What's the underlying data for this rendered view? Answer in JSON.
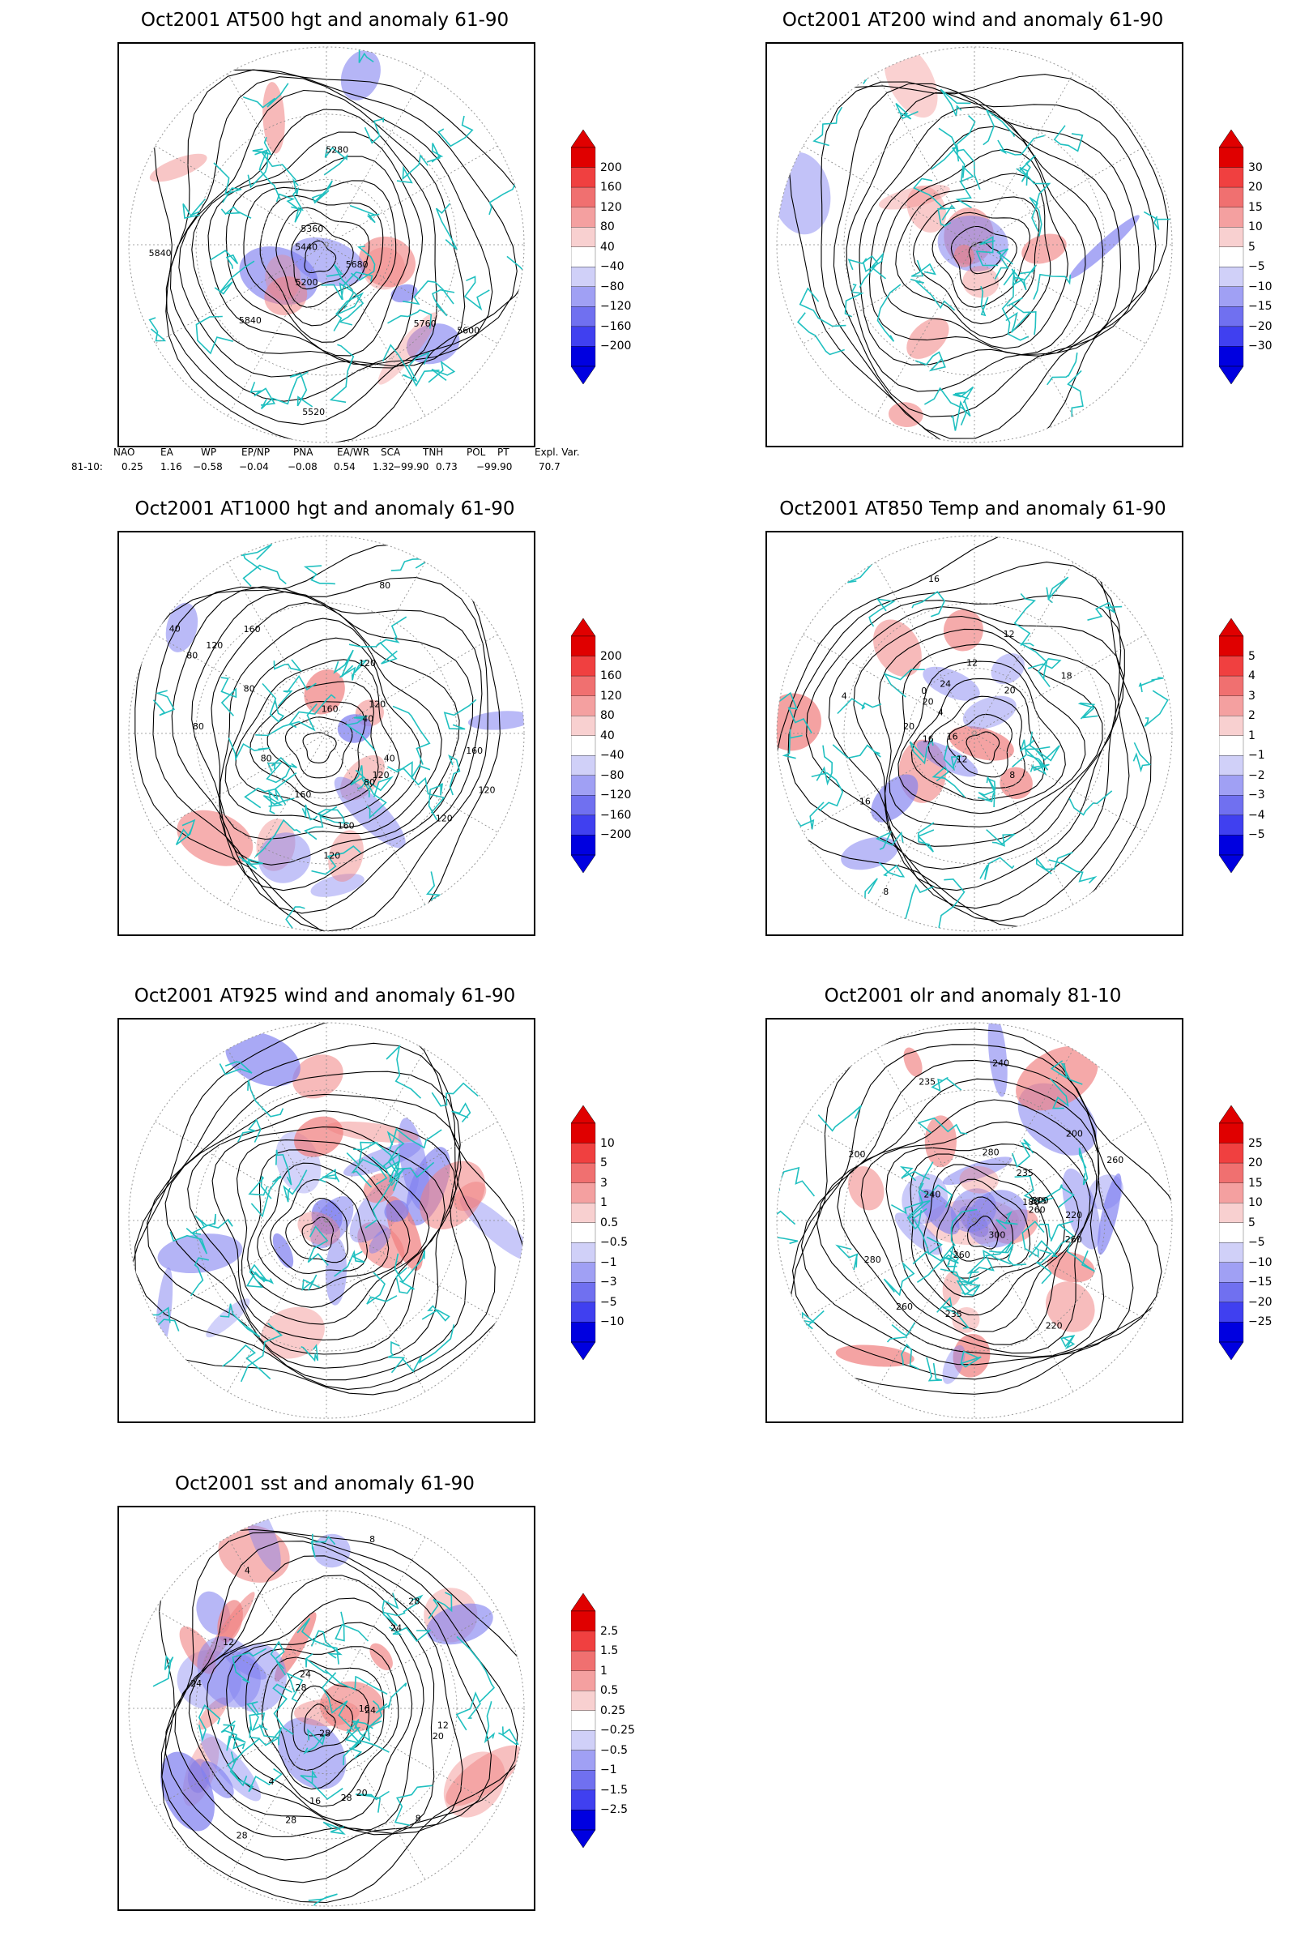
{
  "panels": [
    {
      "id": "at500",
      "title": "Oct2001 AT500 hgt and anomaly 61-90",
      "contour_labels": [
        "5840",
        "5200",
        "5280",
        "5360",
        "5440",
        "5520",
        "5600",
        "5680",
        "5760",
        "5840"
      ],
      "colorbar": [
        "200",
        "160",
        "120",
        "80",
        "40",
        "−40",
        "−80",
        "−120",
        "−160",
        "−200"
      ]
    },
    {
      "id": "at200",
      "title": "Oct2001 AT200 wind and anomaly 61-90",
      "contour_labels": [],
      "colorbar": [
        "30",
        "20",
        "15",
        "10",
        "5",
        "−5",
        "−10",
        "−15",
        "−20",
        "−30"
      ]
    },
    {
      "id": "at1000",
      "title": "Oct2001 AT1000 hgt and anomaly 61-90",
      "contour_labels": [
        "80",
        "120",
        "80",
        "80",
        "160",
        "80",
        "40",
        "160",
        "120",
        "120",
        "160",
        "40",
        "120",
        "40",
        "80",
        "120",
        "160",
        "160",
        "120",
        "80",
        "120"
      ],
      "colorbar": [
        "200",
        "160",
        "120",
        "80",
        "40",
        "−40",
        "−80",
        "−120",
        "−160",
        "−200"
      ]
    },
    {
      "id": "at850",
      "title": "Oct2001 AT850 Temp and anomaly 61-90",
      "contour_labels": [
        "18",
        "16",
        "20",
        "4",
        "8",
        "12",
        "12",
        "16",
        "0",
        "4",
        "8",
        "12",
        "20",
        "16",
        "24",
        "20",
        "16"
      ],
      "colorbar": [
        "5",
        "4",
        "3",
        "2",
        "1",
        "−1",
        "−2",
        "−3",
        "−4",
        "−5"
      ]
    },
    {
      "id": "at925",
      "title": "Oct2001 AT925 wind and anomaly 61-90",
      "contour_labels": [],
      "colorbar": [
        "10",
        "5",
        "3",
        "1",
        "0.5",
        "−0.5",
        "−1",
        "−3",
        "−5",
        "−10"
      ]
    },
    {
      "id": "olr",
      "title": "Oct2001 olr and anomaly 81-10",
      "contour_labels": [
        "260",
        "235",
        "220",
        "200",
        "240",
        "260",
        "235",
        "180",
        "200",
        "220",
        "240",
        "260",
        "280",
        "300",
        "235",
        "260",
        "280",
        "300",
        "235",
        "260"
      ],
      "colorbar": [
        "25",
        "20",
        "15",
        "10",
        "5",
        "−5",
        "−10",
        "−15",
        "−20",
        "−25"
      ]
    },
    {
      "id": "sst",
      "title": "Oct2001 sst and anomaly 61-90",
      "contour_labels": [
        "28",
        "28",
        "24",
        "24",
        "20",
        "16",
        "12",
        "8",
        "4",
        "28",
        "24",
        "20",
        "16",
        "12",
        "8",
        "4",
        "28",
        "24",
        "28",
        "28"
      ],
      "colorbar": [
        "2.5",
        "1.5",
        "1",
        "0.5",
        "0.25",
        "−0.25",
        "−0.5",
        "−1",
        "−1.5",
        "−2.5"
      ]
    }
  ],
  "index_table": {
    "headers": [
      "NAO",
      "EA",
      "WP",
      "EP/NP",
      "PNA",
      "EA/WR",
      "SCA",
      "TNH",
      "POL",
      "PT",
      "Expl. Var."
    ],
    "row_label": "81-10:",
    "values": [
      "0.25",
      "1.16",
      "−0.58",
      "−0.04",
      "−0.08",
      "0.54",
      "1.32",
      "−99.90",
      "0.73",
      "−99.90",
      "70.7"
    ]
  },
  "colors": {
    "coastline": "#20c0c0",
    "positive_anomaly": "#f08080",
    "negative_anomaly": "#8080f0",
    "contour": "#000000"
  }
}
